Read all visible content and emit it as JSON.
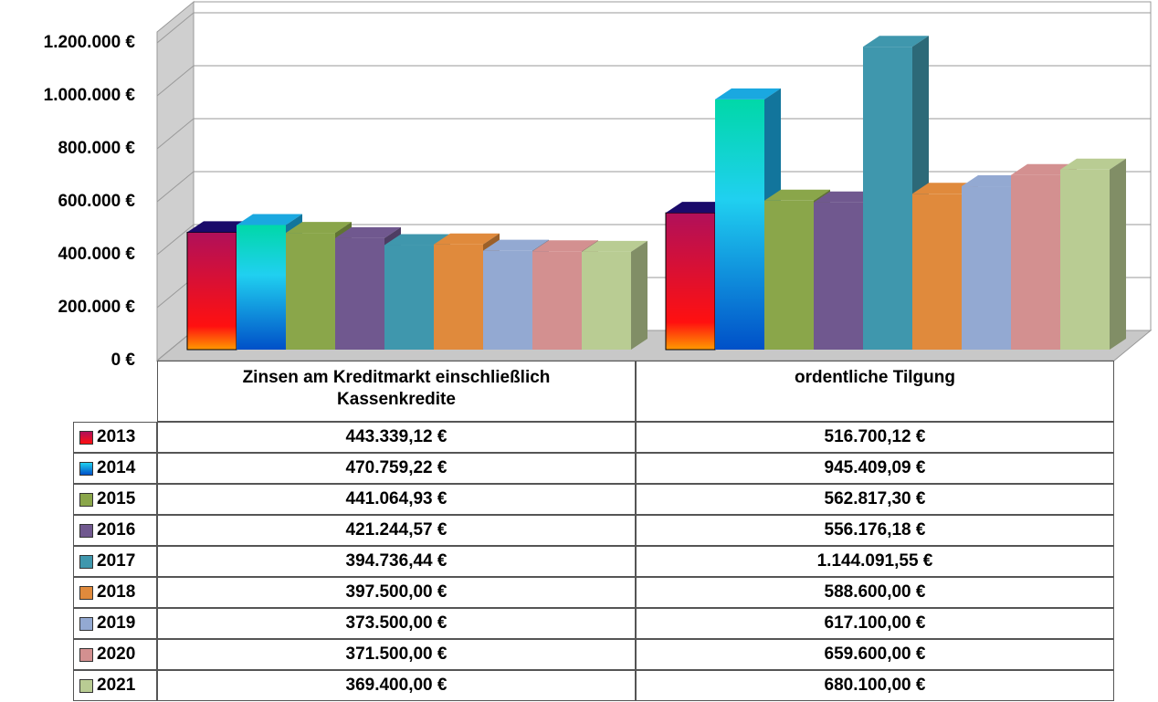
{
  "chart_data": {
    "type": "bar3d",
    "categories": [
      "Zinsen am Kreditmarkt einschließlich Kassenkredite",
      "ordentliche Tilgung"
    ],
    "series": [
      {
        "name": "2013",
        "color": "#d0103a",
        "values": [
          443339.12,
          516700.12
        ],
        "value_labels": [
          "443.339,12 €",
          "516.700,12 €"
        ]
      },
      {
        "name": "2014",
        "color": "#1aa8e0",
        "values": [
          470759.22,
          945409.09
        ],
        "value_labels": [
          "470.759,22 €",
          "945.409,09 €"
        ]
      },
      {
        "name": "2015",
        "color": "#8aa64a",
        "values": [
          441064.93,
          562817.3
        ],
        "value_labels": [
          "441.064,93 €",
          "562.817,30 €"
        ]
      },
      {
        "name": "2016",
        "color": "#70588f",
        "values": [
          421244.57,
          556176.18
        ],
        "value_labels": [
          "421.244,57 €",
          "556.176,18 €"
        ]
      },
      {
        "name": "2017",
        "color": "#3f97ad",
        "values": [
          394736.44,
          1144091.55
        ],
        "value_labels": [
          "394.736,44 €",
          "1.144.091,55 €"
        ]
      },
      {
        "name": "2018",
        "color": "#e08a3c",
        "values": [
          397500.0,
          588600.0
        ],
        "value_labels": [
          "397.500,00 €",
          "588.600,00 €"
        ]
      },
      {
        "name": "2019",
        "color": "#93a9d2",
        "values": [
          373500.0,
          617100.0
        ],
        "value_labels": [
          "373.500,00 €",
          "617.100,00 €"
        ]
      },
      {
        "name": "2020",
        "color": "#d39090",
        "values": [
          371500.0,
          659600.0
        ],
        "value_labels": [
          "371.500,00 €",
          "659.600,00 €"
        ]
      },
      {
        "name": "2021",
        "color": "#b9cc93",
        "values": [
          369400.0,
          680100.0
        ],
        "value_labels": [
          "369.400,00 €",
          "680.100,00 €"
        ]
      }
    ],
    "ylim": [
      0,
      1200000
    ],
    "yticks": [
      {
        "value": 0,
        "label": "0 €"
      },
      {
        "value": 200000,
        "label": "200.000 €"
      },
      {
        "value": 400000,
        "label": "400.000 €"
      },
      {
        "value": 600000,
        "label": "600.000 €"
      },
      {
        "value": 800000,
        "label": "800.000 €"
      },
      {
        "value": 1000000,
        "label": "1.000.000 €"
      },
      {
        "value": 1200000,
        "label": "1.200.000 €"
      }
    ],
    "grid": true
  }
}
